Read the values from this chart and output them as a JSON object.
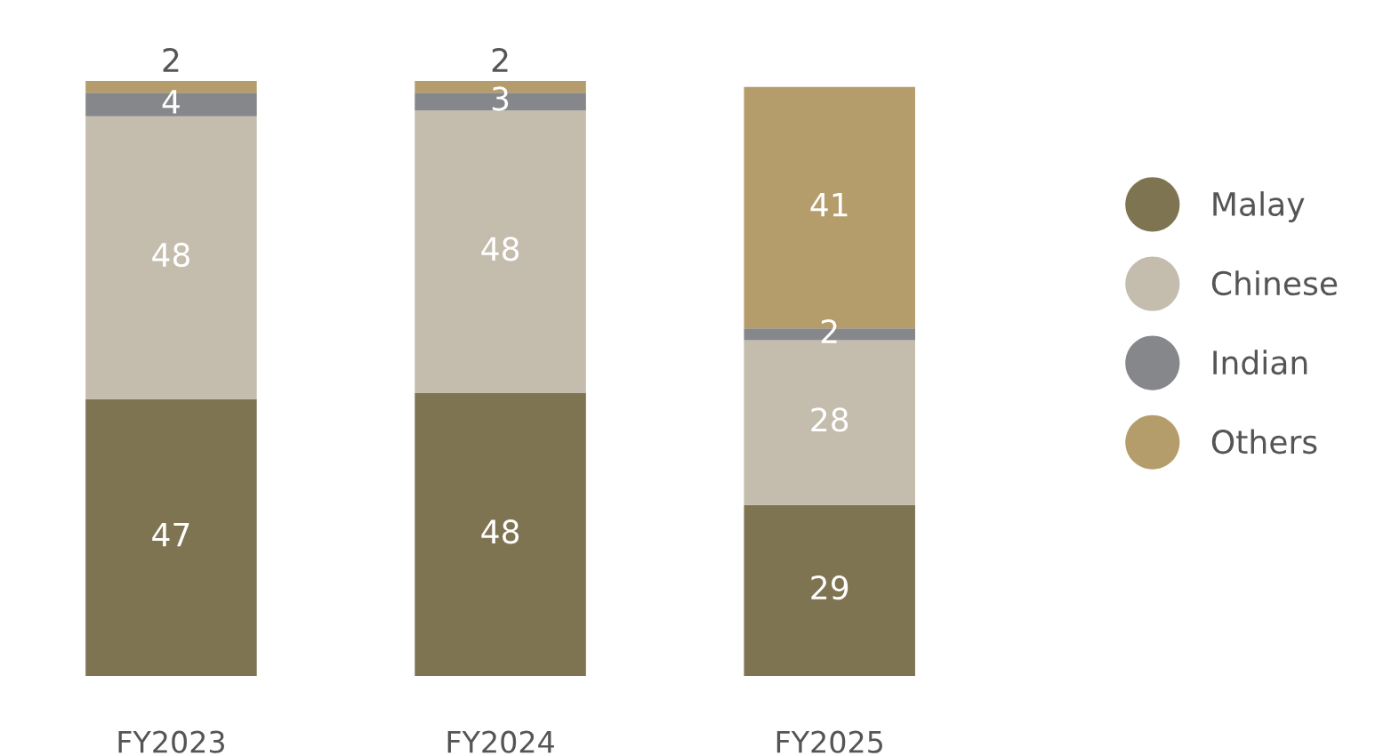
{
  "chart_data": {
    "type": "bar",
    "stacked": true,
    "data_labels": true,
    "legend": "right",
    "grid": false,
    "categories": [
      "FY2023",
      "FY2024",
      "FY2025"
    ],
    "series": [
      {
        "name": "Malay",
        "color": "#7f7452",
        "values": [
          47,
          48,
          29
        ]
      },
      {
        "name": "Chinese",
        "color": "#c4bcad",
        "values": [
          48,
          48,
          28
        ]
      },
      {
        "name": "Indian",
        "color": "#85878a",
        "values": [
          4,
          3,
          2
        ]
      },
      {
        "name": "Others",
        "color": "#b59d6b",
        "values": [
          2,
          2,
          41
        ]
      }
    ]
  }
}
